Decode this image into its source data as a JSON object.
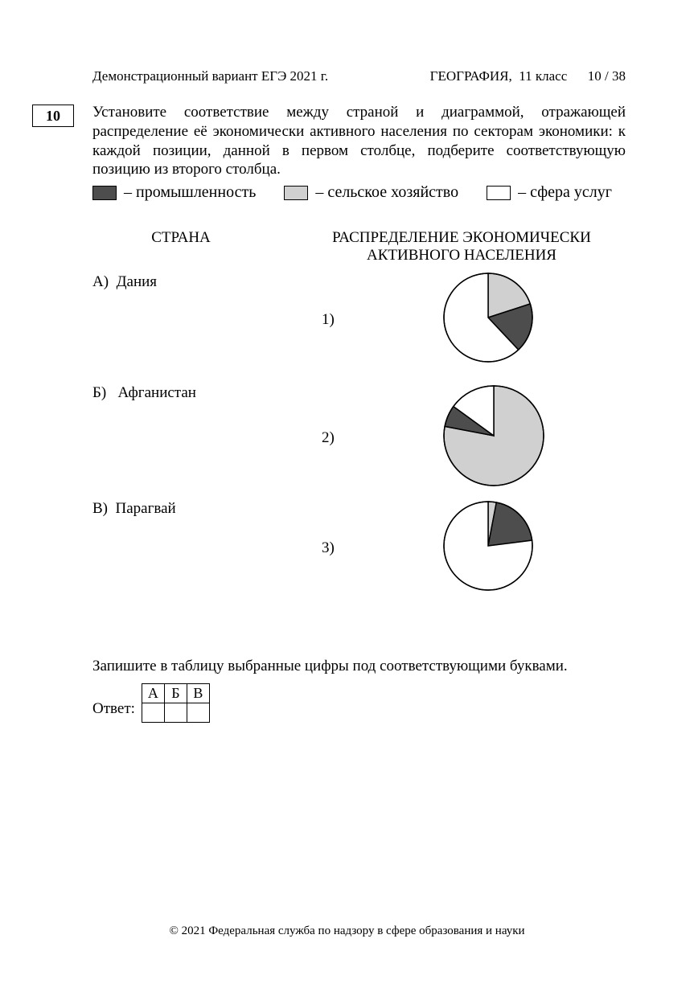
{
  "header": {
    "left": "Демонстрационный вариант  ЕГЭ 2021 г.",
    "subject": "ГЕОГРАФИЯ",
    "grade": "11 класс",
    "page": "10 / 38"
  },
  "question_number": "10",
  "question_text": "Установите соответствие между страной и диаграммой, отражающей распределение её экономически активного населения по секторам экономики: к каждой позиции, данной в первом столбце, подберите соответствующую позицию из второго столбца.",
  "legend": {
    "industry": {
      "label": "– промышленность",
      "color": "#4d4d4d"
    },
    "agriculture": {
      "label": "– сельское хозяйство",
      "color": "#d0d0d0"
    },
    "services": {
      "label": "– сфера услуг",
      "color": "#ffffff"
    }
  },
  "columns": {
    "left_header": "СТРАНА",
    "right_header_l1": "РАСПРЕДЕЛЕНИЕ ЭКОНОМИЧЕСКИ",
    "right_header_l2": "АКТИВНОГО НАСЕЛЕНИЯ"
  },
  "countries": {
    "A": {
      "letter": "А)",
      "name": "Дания"
    },
    "B": {
      "letter": "Б)",
      "name": "Афганистан"
    },
    "C": {
      "letter": "В)",
      "name": "Парагвай"
    }
  },
  "charts": {
    "c1": {
      "label": "1)",
      "type": "pie",
      "radius": 55,
      "stroke": "#000000",
      "slices": [
        {
          "value": 20,
          "color": "#d0d0d0"
        },
        {
          "value": 18,
          "color": "#4d4d4d"
        },
        {
          "value": 62,
          "color": "#ffffff"
        }
      ]
    },
    "c2": {
      "label": "2)",
      "type": "pie",
      "radius": 62,
      "stroke": "#000000",
      "slices": [
        {
          "value": 78,
          "color": "#d0d0d0"
        },
        {
          "value": 7,
          "color": "#4d4d4d"
        },
        {
          "value": 15,
          "color": "#ffffff"
        }
      ]
    },
    "c3": {
      "label": "3)",
      "type": "pie",
      "radius": 55,
      "stroke": "#000000",
      "slices": [
        {
          "value": 3,
          "color": "#d0d0d0"
        },
        {
          "value": 20,
          "color": "#4d4d4d"
        },
        {
          "value": 77,
          "color": "#ffffff"
        }
      ]
    }
  },
  "instruction": "Запишите в таблицу выбранные цифры под соответствующими буквами.",
  "answer": {
    "label": "Ответ:",
    "cols": [
      "А",
      "Б",
      "В"
    ]
  },
  "footer": "© 2021 Федеральная служба по надзору в сфере образования и науки"
}
